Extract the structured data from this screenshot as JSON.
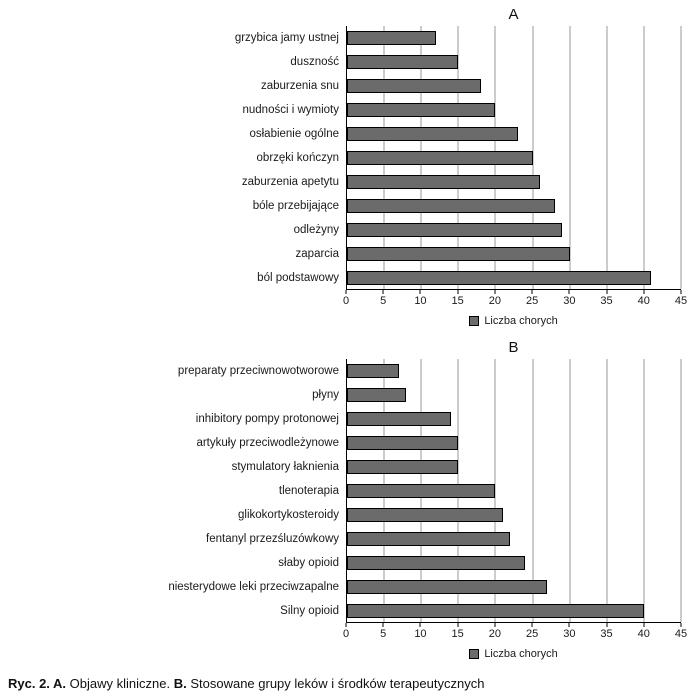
{
  "caption": {
    "bold_a": "Ryc. 2. A.",
    "text_a": " Objawy kliniczne. ",
    "bold_b": "B.",
    "text_b": " Stosowane grupy leków i środków terapeutycznych"
  },
  "chart_data": [
    {
      "type": "bar",
      "orientation": "horizontal",
      "title": "A",
      "categories": [
        "grzybica jamy ustnej",
        "duszność",
        "zaburzenia snu",
        "nudności i wymioty",
        "osłabienie ogólne",
        "obrzęki kończyn",
        "zaburzenia apetytu",
        "bóle przebijające",
        "odleżyny",
        "zaparcia",
        "ból podstawowy"
      ],
      "values": [
        12,
        15,
        18,
        20,
        23,
        25,
        26,
        28,
        29,
        30,
        41
      ],
      "xlim": [
        0,
        45
      ],
      "xticks": [
        0,
        5,
        10,
        15,
        20,
        25,
        30,
        35,
        40,
        45
      ],
      "legend": "Liczba chorych",
      "bar_color": "#6b6b6b",
      "grid": true,
      "legend_position": "bottom"
    },
    {
      "type": "bar",
      "orientation": "horizontal",
      "title": "B",
      "categories": [
        "preparaty przeciwnowotworowe",
        "płyny",
        "inhibitory pompy protonowej",
        "artykuły przeciwodleżynowe",
        "stymulatory łaknienia",
        "tlenoterapia",
        "glikokortykosteroidy",
        "fentanyl przezśluzówkowy",
        "słaby opioid",
        "niesterydowe leki przeciwzapalne",
        "Silny opioid"
      ],
      "values": [
        7,
        8,
        14,
        15,
        15,
        20,
        21,
        22,
        24,
        27,
        40
      ],
      "xlim": [
        0,
        45
      ],
      "xticks": [
        0,
        5,
        10,
        15,
        20,
        25,
        30,
        35,
        40,
        45
      ],
      "legend": "Liczba chorych",
      "bar_color": "#6b6b6b",
      "grid": true,
      "legend_position": "bottom"
    }
  ]
}
